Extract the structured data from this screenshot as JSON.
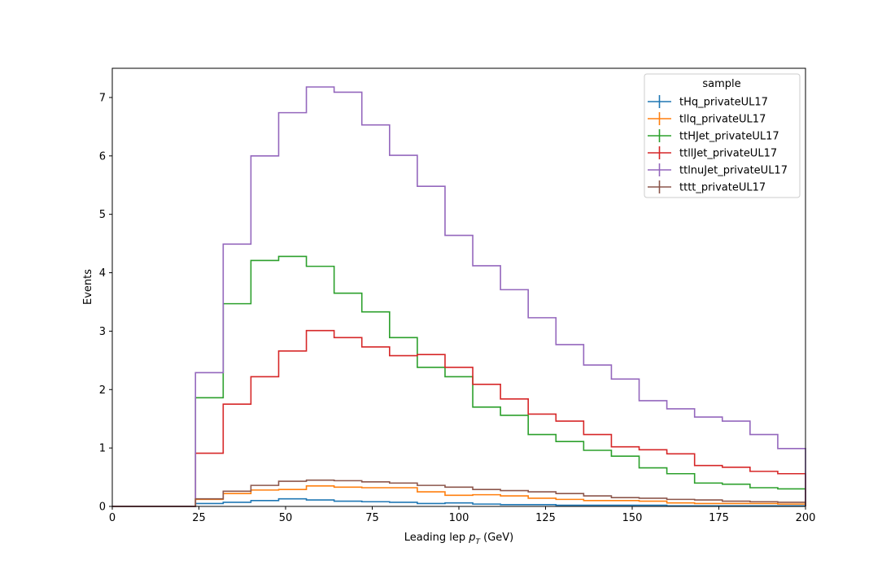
{
  "chart_data": {
    "type": "line",
    "style": "step-histogram",
    "xlabel_main": "Leading lep ",
    "xlabel_sym": "p",
    "xlabel_sub": "T",
    "xlabel_unit": " (GeV)",
    "ylabel": "Events",
    "xlim": [
      0,
      200
    ],
    "ylim": [
      0,
      7.5
    ],
    "xticks": [
      "0",
      "25",
      "50",
      "75",
      "100",
      "125",
      "150",
      "175",
      "200"
    ],
    "yticks": [
      "0",
      "1",
      "2",
      "3",
      "4",
      "5",
      "6",
      "7"
    ],
    "legend_title": "sample",
    "legend_position": "top-right",
    "grid": false,
    "bin_edges": [
      0,
      8,
      16,
      24,
      32,
      40,
      48,
      56,
      64,
      72,
      80,
      88,
      96,
      104,
      112,
      120,
      128,
      136,
      144,
      152,
      160,
      168,
      176,
      184,
      192,
      200
    ],
    "series": [
      {
        "name": "tHq_privateUL17",
        "color": "#1f77b4",
        "values": [
          0,
          0,
          0,
          0.05,
          0.07,
          0.1,
          0.13,
          0.11,
          0.09,
          0.08,
          0.07,
          0.05,
          0.06,
          0.04,
          0.03,
          0.03,
          0.02,
          0.02,
          0.02,
          0.02,
          0.01,
          0.01,
          0.01,
          0.01,
          0.01
        ]
      },
      {
        "name": "tllq_privateUL17",
        "color": "#ff7f0e",
        "values": [
          0,
          0,
          0,
          0.12,
          0.22,
          0.28,
          0.29,
          0.35,
          0.33,
          0.32,
          0.32,
          0.25,
          0.19,
          0.2,
          0.18,
          0.14,
          0.12,
          0.1,
          0.1,
          0.09,
          0.06,
          0.05,
          0.05,
          0.05,
          0.04
        ]
      },
      {
        "name": "ttHJet_privateUL17",
        "color": "#2ca02c",
        "values": [
          0,
          0,
          0,
          1.86,
          3.47,
          4.21,
          4.28,
          4.11,
          3.65,
          3.33,
          2.89,
          2.38,
          2.22,
          1.7,
          1.56,
          1.23,
          1.11,
          0.96,
          0.86,
          0.66,
          0.56,
          0.4,
          0.38,
          0.32,
          0.3
        ]
      },
      {
        "name": "ttllJet_privateUL17",
        "color": "#d62728",
        "values": [
          0,
          0,
          0,
          0.91,
          1.75,
          2.22,
          2.66,
          3.01,
          2.89,
          2.73,
          2.58,
          2.6,
          2.38,
          2.09,
          1.84,
          1.58,
          1.46,
          1.23,
          1.02,
          0.97,
          0.9,
          0.7,
          0.67,
          0.6,
          0.56
        ]
      },
      {
        "name": "ttlnuJet_privateUL17",
        "color": "#9467bd",
        "values": [
          0,
          0,
          0,
          2.29,
          4.49,
          6.0,
          6.74,
          7.18,
          7.09,
          6.53,
          6.01,
          5.48,
          4.64,
          4.12,
          3.71,
          3.23,
          2.77,
          2.42,
          2.18,
          1.81,
          1.67,
          1.53,
          1.46,
          1.23,
          0.99
        ]
      },
      {
        "name": "tttt_privateUL17",
        "color": "#8c564b",
        "values": [
          0,
          0,
          0,
          0.13,
          0.26,
          0.36,
          0.43,
          0.45,
          0.44,
          0.42,
          0.4,
          0.36,
          0.33,
          0.29,
          0.27,
          0.25,
          0.22,
          0.18,
          0.15,
          0.14,
          0.12,
          0.11,
          0.09,
          0.08,
          0.07
        ]
      }
    ]
  }
}
